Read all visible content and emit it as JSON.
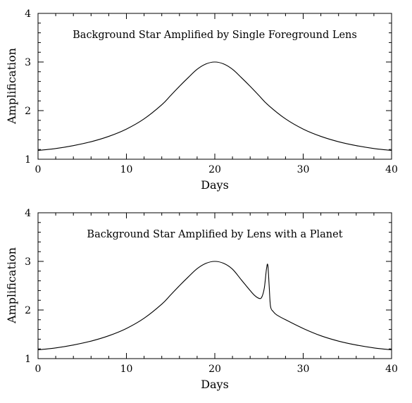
{
  "chart_data": [
    {
      "type": "line",
      "title": "Background Star Amplified by Single Foreground Lens",
      "xlabel": "Days",
      "ylabel": "Amplification",
      "xlim": [
        0,
        40
      ],
      "ylim": [
        1,
        4
      ],
      "x_ticks": [
        0,
        10,
        20,
        30,
        40
      ],
      "y_ticks": [
        1,
        2,
        3,
        4
      ],
      "x_minor_step": 2,
      "y_minor_step": 0.2,
      "grid": false,
      "series": [
        {
          "x": [
            0,
            2,
            4,
            6,
            8,
            10,
            12,
            14,
            15,
            16,
            17,
            18,
            19,
            20,
            21,
            22,
            23,
            24,
            25,
            26,
            28,
            30,
            32,
            34,
            36,
            38,
            40
          ],
          "y": [
            1.18,
            1.22,
            1.28,
            1.36,
            1.47,
            1.62,
            1.83,
            2.12,
            2.31,
            2.5,
            2.68,
            2.85,
            2.96,
            3.0,
            2.96,
            2.85,
            2.68,
            2.5,
            2.31,
            2.12,
            1.83,
            1.62,
            1.47,
            1.36,
            1.28,
            1.22,
            1.18
          ]
        }
      ]
    },
    {
      "type": "line",
      "title": "Background Star Amplified by Lens with a Planet",
      "xlabel": "Days",
      "ylabel": "Amplification",
      "xlim": [
        0,
        40
      ],
      "ylim": [
        1,
        4
      ],
      "x_ticks": [
        0,
        10,
        20,
        30,
        40
      ],
      "y_ticks": [
        1,
        2,
        3,
        4
      ],
      "x_minor_step": 2,
      "y_minor_step": 0.2,
      "grid": false,
      "series": [
        {
          "x": [
            0,
            2,
            4,
            6,
            8,
            10,
            12,
            14,
            15,
            16,
            17,
            18,
            19,
            20,
            21,
            22,
            23,
            24,
            24.5,
            25,
            25.3,
            25.6,
            25.85,
            26.0,
            26.15,
            26.3,
            26.6,
            27,
            28,
            30,
            32,
            34,
            36,
            38,
            40
          ],
          "y": [
            1.18,
            1.22,
            1.28,
            1.36,
            1.47,
            1.62,
            1.83,
            2.12,
            2.31,
            2.5,
            2.68,
            2.85,
            2.96,
            3.0,
            2.96,
            2.84,
            2.62,
            2.4,
            2.3,
            2.24,
            2.26,
            2.45,
            2.85,
            2.92,
            2.5,
            2.08,
            1.97,
            1.9,
            1.8,
            1.62,
            1.47,
            1.36,
            1.28,
            1.22,
            1.18
          ]
        }
      ]
    }
  ]
}
